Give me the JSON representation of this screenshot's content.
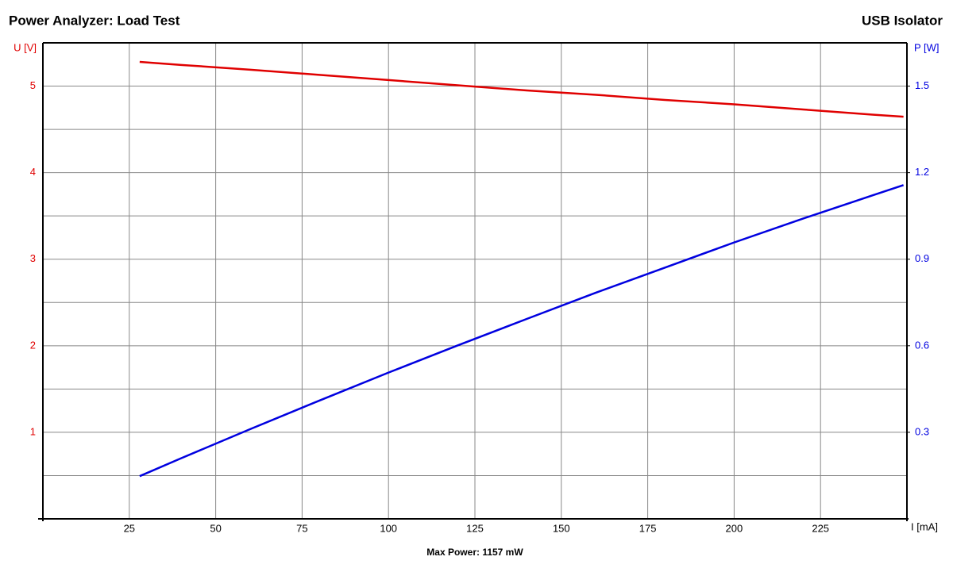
{
  "chart_data": {
    "type": "line",
    "title": "Power Analyzer: Load Test",
    "subtitle": "USB Isolator",
    "footer": "Max Power: 1157 mW",
    "x_label": "I [mA]",
    "y_label": "U [V]",
    "y2_label": "P [W]",
    "x": [
      28,
      40,
      60,
      80,
      100,
      120,
      140,
      160,
      180,
      200,
      220,
      240,
      249
    ],
    "series": [
      {
        "name": "U [V]",
        "color": "#e00000",
        "values": [
          5.28,
          5.245,
          5.19,
          5.13,
          5.07,
          5.01,
          4.95,
          4.9,
          4.84,
          4.79,
          4.73,
          4.67,
          4.646
        ]
      },
      {
        "name": "P [W]",
        "color": "#0000e0",
        "axis": "y2",
        "values": [
          0.148,
          0.21,
          0.311,
          0.41,
          0.507,
          0.601,
          0.693,
          0.784,
          0.871,
          0.958,
          1.041,
          1.121,
          1.157
        ]
      }
    ],
    "xlim": [
      0,
      250
    ],
    "xticks": [
      25,
      50,
      75,
      100,
      125,
      150,
      175,
      200,
      225
    ],
    "ylim": [
      0,
      5.5
    ],
    "yticks": [
      1,
      2,
      3,
      4,
      5
    ],
    "ygrid_minor": [
      0.5,
      1.5,
      2.5,
      3.5,
      4.5
    ],
    "y2lim": [
      0,
      1.65
    ],
    "y2ticks": [
      0.3,
      0.6,
      0.9,
      1.2,
      1.5
    ],
    "grid": true
  }
}
